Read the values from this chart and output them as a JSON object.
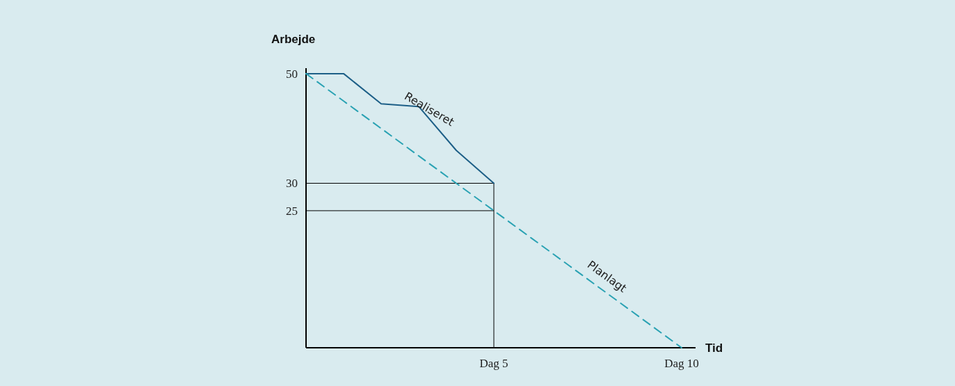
{
  "chart_data": {
    "type": "line",
    "xlabel": "Tid",
    "ylabel": "Arbejde",
    "ylim": [
      0,
      51
    ],
    "categories": [
      null,
      null,
      null,
      null,
      null,
      "Dag 5",
      null,
      null,
      null,
      null,
      "Dag 10"
    ],
    "yticks": [
      25,
      30,
      50
    ],
    "series": [
      {
        "name": "Realiseret",
        "color": "#1d5f87",
        "line_style": "solid",
        "values": [
          50,
          50,
          44.5,
          44,
          36,
          30,
          null,
          null,
          null,
          null,
          null
        ]
      },
      {
        "name": "Planlagt",
        "color": "#2aa2b3",
        "line_style": "dashed",
        "values": [
          50,
          45,
          40,
          35,
          30,
          25,
          20,
          15,
          10,
          5,
          0
        ]
      }
    ],
    "ref_lines": [
      {
        "axis": "y",
        "value": 30,
        "color": "#000000"
      },
      {
        "axis": "y",
        "value": 25,
        "color": "#000000"
      },
      {
        "axis": "x",
        "value": "Dag 5",
        "color": "#000000"
      }
    ],
    "grid": false,
    "marker": "none"
  }
}
